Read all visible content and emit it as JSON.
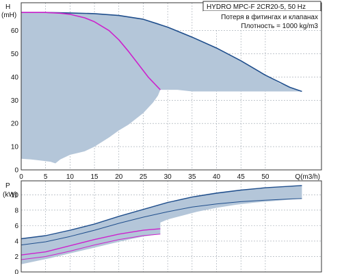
{
  "chart_data": [
    {
      "type": "area",
      "title": "HYDRO MPC-F 2CR20-5, 50 Hz",
      "annotations": [
        "Потеря в фитингах и клапанах",
        "Плотность = 1000 kg/m3"
      ],
      "ylabel": "H",
      "yunit": "(mH)",
      "xlabel": "Q(m3/h)",
      "x_ticks": [
        "0",
        "5",
        "10",
        "15",
        "20",
        "25",
        "30",
        "35",
        "40",
        "45",
        "50"
      ],
      "y_ticks": [
        "0",
        "10",
        "20",
        "30",
        "40",
        "50",
        "60"
      ],
      "xlim": [
        0,
        61.5
      ],
      "ylim": [
        0,
        72
      ],
      "grid": true,
      "colors": {
        "envelope": "#b4c6d9",
        "max_curve": "#1f4e8c",
        "duty_curve": "#cc22cc",
        "grid": "#9aa3ad"
      },
      "envelope_upper": {
        "x": [
          0,
          2,
          5,
          8,
          10,
          14,
          18,
          20,
          23,
          26,
          28,
          29,
          30,
          33,
          36,
          40,
          43,
          46,
          50,
          53,
          57.5
        ],
        "y": [
          67.8,
          67.8,
          67.8,
          67.8,
          67.6,
          67.3,
          66.8,
          66.4,
          65.6,
          64.4,
          63.2,
          62.3,
          61.5,
          59.2,
          56.5,
          52.7,
          49.2,
          45.7,
          40.8,
          37.2,
          33.8
        ]
      },
      "envelope_lower": {
        "x": [
          57.5,
          35,
          32,
          30,
          28.5,
          28,
          27,
          25,
          22,
          20,
          18,
          15,
          13,
          12,
          10,
          8,
          7,
          6,
          4,
          2,
          0
        ],
        "y": [
          33.8,
          33.8,
          34.5,
          34.5,
          34.5,
          32,
          29,
          24.5,
          19.5,
          17,
          14,
          10,
          8,
          7.5,
          6.5,
          4.5,
          2.8,
          3.5,
          4,
          4.5,
          4.8
        ]
      },
      "series": [
        {
          "x": [
            0,
            5,
            10,
            15,
            20,
            25,
            30,
            35,
            40,
            45,
            50,
            55,
            57.5
          ],
          "y": [
            67.8,
            67.8,
            67.6,
            67.3,
            66.5,
            64.9,
            61.5,
            57.2,
            52.5,
            47,
            40.8,
            35.6,
            33.8
          ]
        },
        {
          "x": [
            0,
            5,
            8,
            10,
            13,
            15,
            18,
            20,
            22,
            24,
            26,
            28.5
          ],
          "y": [
            67.8,
            67.8,
            67.5,
            67,
            65.5,
            63.8,
            60,
            56,
            51,
            45.5,
            40,
            34.5
          ]
        }
      ]
    },
    {
      "type": "area",
      "ylabel": "P",
      "yunit": "(kW)",
      "y_ticks": [
        "0",
        "2",
        "4",
        "6",
        "8",
        "10"
      ],
      "xlim": [
        0,
        61.5
      ],
      "ylim": [
        0,
        11.8
      ],
      "grid": true,
      "envelope_upper": {
        "x": [
          0,
          3,
          6,
          9,
          12,
          15,
          18,
          20,
          22,
          25,
          28,
          30,
          33,
          36,
          40,
          44,
          48,
          52,
          55,
          57.5
        ],
        "y": [
          4.3,
          4.5,
          4.8,
          5.2,
          5.7,
          6.2,
          6.8,
          7.2,
          7.6,
          8.1,
          8.7,
          9.0,
          9.5,
          9.9,
          10.3,
          10.6,
          10.8,
          11.0,
          11.1,
          11.2
        ]
      },
      "envelope_lower": {
        "x": [
          57.5,
          52,
          48,
          44,
          40,
          36,
          33,
          30,
          28.5,
          28.5,
          25,
          22,
          18,
          14,
          10,
          6,
          3,
          0
        ],
        "y": [
          9.5,
          9.2,
          9.0,
          8.7,
          8.3,
          7.8,
          7.3,
          6.8,
          6.4,
          4.9,
          4.6,
          4.2,
          3.6,
          3.0,
          2.4,
          1.8,
          1.4,
          1.0
        ]
      },
      "series": [
        {
          "x": [
            0,
            5,
            10,
            15,
            20,
            25,
            30,
            35,
            40,
            45,
            50,
            55,
            57.5
          ],
          "y": [
            4.3,
            4.7,
            5.4,
            6.2,
            7.2,
            8.1,
            9.0,
            9.7,
            10.2,
            10.6,
            10.9,
            11.1,
            11.2
          ]
        },
        {
          "x": [
            0,
            5,
            10,
            15,
            20,
            25,
            30,
            35,
            40,
            45,
            50,
            55,
            57.5
          ],
          "y": [
            3.5,
            3.9,
            4.6,
            5.4,
            6.3,
            7.1,
            7.8,
            8.4,
            8.8,
            9.1,
            9.3,
            9.45,
            9.5
          ]
        },
        {
          "x": [
            0,
            5,
            10,
            15,
            20,
            25,
            28.5
          ],
          "y": [
            2.2,
            2.6,
            3.4,
            4.2,
            4.9,
            5.4,
            5.6
          ]
        },
        {
          "x": [
            0,
            5,
            10,
            15,
            20,
            25,
            28.5
          ],
          "y": [
            1.6,
            2.0,
            2.7,
            3.5,
            4.2,
            4.7,
            4.9
          ]
        }
      ]
    }
  ]
}
